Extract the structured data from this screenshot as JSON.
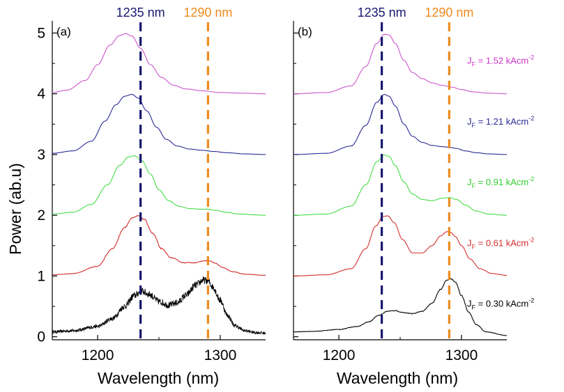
{
  "chart_data": {
    "type": "line",
    "ylabel": "Power (ab.u)",
    "xlabel": "Wavelength (nm)",
    "y_ticks": [
      "0",
      "1",
      "2",
      "3",
      "4",
      "5"
    ],
    "x_ticks": [
      "1200",
      "1300"
    ],
    "xlim": [
      1163,
      1337
    ],
    "ylim": [
      -0.05,
      5.2
    ],
    "reference_lines": [
      {
        "x": 1235,
        "label": "1235 nm",
        "color": "#16166f"
      },
      {
        "x": 1290,
        "label": "1290 nm",
        "color": "#ee8a1e"
      }
    ],
    "panels": [
      {
        "label": "(a)",
        "series": [
          {
            "jf": "0.30",
            "offset": 0,
            "color": "#000000",
            "noise": 0.06,
            "x": [
              1163,
              1180,
              1200,
              1212,
              1222,
              1230,
              1236,
              1242,
              1250,
              1258,
              1265,
              1272,
              1280,
              1286,
              1290,
              1294,
              1300,
              1306,
              1312,
              1320,
              1328,
              1337
            ],
            "y": [
              0.08,
              0.1,
              0.17,
              0.3,
              0.5,
              0.68,
              0.75,
              0.7,
              0.58,
              0.52,
              0.56,
              0.68,
              0.85,
              0.93,
              0.92,
              0.82,
              0.6,
              0.35,
              0.18,
              0.1,
              0.07,
              0.06
            ]
          },
          {
            "jf": "0.61",
            "offset": 1,
            "color": "#d22d2d",
            "noise": 0.01,
            "x": [
              1163,
              1180,
              1200,
              1212,
              1222,
              1228,
              1233,
              1238,
              1245,
              1252,
              1260,
              1270,
              1280,
              1287,
              1291,
              1296,
              1302,
              1310,
              1320,
              1337
            ],
            "y": [
              0.02,
              0.04,
              0.16,
              0.45,
              0.8,
              0.95,
              0.99,
              0.93,
              0.7,
              0.45,
              0.3,
              0.22,
              0.22,
              0.25,
              0.25,
              0.21,
              0.14,
              0.07,
              0.03,
              0.01
            ]
          },
          {
            "jf": "0.91",
            "offset": 2,
            "color": "#44dd44",
            "noise": 0,
            "x": [
              1163,
              1180,
              1195,
              1208,
              1218,
              1225,
              1230,
              1236,
              1243,
              1250,
              1258,
              1266,
              1275,
              1284,
              1290,
              1296,
              1305,
              1315,
              1337
            ],
            "y": [
              0.02,
              0.05,
              0.18,
              0.5,
              0.82,
              0.96,
              0.98,
              0.9,
              0.68,
              0.42,
              0.24,
              0.15,
              0.11,
              0.1,
              0.1,
              0.08,
              0.05,
              0.02,
              0.0
            ]
          },
          {
            "jf": "1.21",
            "offset": 3,
            "color": "#2a2a95",
            "noise": 0,
            "x": [
              1163,
              1180,
              1195,
              1206,
              1215,
              1222,
              1228,
              1233,
              1240,
              1248,
              1256,
              1265,
              1275,
              1285,
              1295,
              1305,
              1320,
              1337
            ],
            "y": [
              0.02,
              0.06,
              0.22,
              0.55,
              0.82,
              0.96,
              0.99,
              0.93,
              0.72,
              0.45,
              0.25,
              0.14,
              0.09,
              0.07,
              0.05,
              0.03,
              0.01,
              0.0
            ]
          },
          {
            "jf": "1.52",
            "offset": 4,
            "color": "#cc55cc",
            "noise": 0,
            "x": [
              1163,
              1175,
              1190,
              1200,
              1210,
              1218,
              1223,
              1228,
              1235,
              1243,
              1252,
              1262,
              1272,
              1285,
              1300,
              1320,
              1337
            ],
            "y": [
              0.02,
              0.06,
              0.22,
              0.48,
              0.8,
              0.96,
              0.99,
              0.95,
              0.75,
              0.48,
              0.27,
              0.14,
              0.08,
              0.05,
              0.02,
              0.01,
              0.0
            ]
          }
        ]
      },
      {
        "label": "(b)",
        "series": [
          {
            "jf": "0.30",
            "offset": 0,
            "color": "#000000",
            "noise": 0.008,
            "x": [
              1163,
              1180,
              1200,
              1215,
              1225,
              1232,
              1240,
              1246,
              1252,
              1260,
              1268,
              1276,
              1283,
              1288,
              1291,
              1295,
              1300,
              1306,
              1312,
              1320,
              1337
            ],
            "y": [
              0.08,
              0.09,
              0.12,
              0.17,
              0.25,
              0.35,
              0.42,
              0.43,
              0.4,
              0.38,
              0.42,
              0.55,
              0.78,
              0.93,
              0.96,
              0.9,
              0.68,
              0.4,
              0.2,
              0.08,
              0.02
            ]
          },
          {
            "jf": "0.61",
            "offset": 1,
            "color": "#d22d2d",
            "noise": 0,
            "x": [
              1163,
              1190,
              1210,
              1222,
              1230,
              1236,
              1240,
              1245,
              1252,
              1260,
              1268,
              1276,
              1283,
              1288,
              1291,
              1295,
              1300,
              1307,
              1315,
              1325,
              1337
            ],
            "y": [
              0.0,
              0.02,
              0.12,
              0.45,
              0.82,
              0.98,
              0.99,
              0.88,
              0.6,
              0.38,
              0.38,
              0.5,
              0.66,
              0.73,
              0.72,
              0.65,
              0.5,
              0.28,
              0.12,
              0.04,
              0.01
            ]
          },
          {
            "jf": "0.91",
            "offset": 2,
            "color": "#44dd44",
            "noise": 0,
            "x": [
              1163,
              1190,
              1210,
              1222,
              1231,
              1237,
              1241,
              1246,
              1253,
              1260,
              1268,
              1276,
              1284,
              1290,
              1296,
              1303,
              1312,
              1322,
              1337
            ],
            "y": [
              0.0,
              0.02,
              0.15,
              0.5,
              0.88,
              0.99,
              0.97,
              0.82,
              0.55,
              0.35,
              0.26,
              0.24,
              0.28,
              0.29,
              0.26,
              0.17,
              0.07,
              0.02,
              0.0
            ]
          },
          {
            "jf": "1.21",
            "offset": 3,
            "color": "#2a2a95",
            "noise": 0,
            "x": [
              1163,
              1190,
              1210,
              1222,
              1231,
              1237,
              1241,
              1246,
              1253,
              1260,
              1268,
              1276,
              1284,
              1290,
              1296,
              1303,
              1312,
              1322,
              1337
            ],
            "y": [
              0.0,
              0.02,
              0.14,
              0.48,
              0.86,
              0.99,
              0.96,
              0.8,
              0.5,
              0.3,
              0.2,
              0.15,
              0.13,
              0.12,
              0.1,
              0.06,
              0.03,
              0.01,
              0.0
            ]
          },
          {
            "jf": "1.52",
            "offset": 4,
            "color": "#cc55cc",
            "noise": 0,
            "x": [
              1163,
              1190,
              1210,
              1222,
              1231,
              1237,
              1241,
              1246,
              1253,
              1260,
              1268,
              1276,
              1284,
              1292,
              1300,
              1310,
              1322,
              1337
            ],
            "y": [
              0.0,
              0.02,
              0.13,
              0.45,
              0.83,
              0.98,
              0.97,
              0.83,
              0.55,
              0.35,
              0.25,
              0.18,
              0.14,
              0.11,
              0.07,
              0.03,
              0.01,
              0.0
            ]
          }
        ]
      }
    ],
    "curve_labels": [
      {
        "prefix": "J",
        "sub": "F",
        "value": " = 1.52 kAcm",
        "sup": "-2",
        "color": "#cc33cc",
        "y": 4.55
      },
      {
        "prefix": "J",
        "sub": "F",
        "value": " = 1.21 kAcm",
        "sup": "-2",
        "color": "#2a2a95",
        "y": 3.55
      },
      {
        "prefix": "J",
        "sub": "F",
        "value": " = 0.91 kAcm",
        "sup": "-2",
        "color": "#33cc33",
        "y": 2.55
      },
      {
        "prefix": "J",
        "sub": "F",
        "value": " = 0.61 kAcm",
        "sup": "-2",
        "color": "#d22d2d",
        "y": 1.55
      },
      {
        "prefix": "J",
        "sub": "F",
        "value": " = 0.30 kAcm",
        "sup": "-2",
        "color": "#000000",
        "y": 0.55
      }
    ]
  }
}
